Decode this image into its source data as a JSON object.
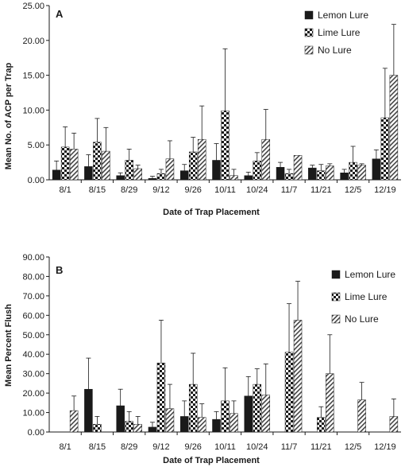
{
  "chart_data": [
    {
      "type": "bar",
      "panel_label": "A",
      "title": "",
      "xlabel": "Date of Trap Placement",
      "ylabel": "Mean No. of ACP per Trap",
      "ylim": [
        0,
        25
      ],
      "yticks": [
        "0.00",
        "5.00",
        "10.00",
        "15.00",
        "20.00",
        "25.00"
      ],
      "y_tick_values": [
        0,
        5,
        10,
        15,
        20,
        25
      ],
      "grid": false,
      "legend_position": "top-right",
      "error_bars": true,
      "categories": [
        "8/1",
        "8/15",
        "8/29",
        "9/12",
        "9/26",
        "10/11",
        "10/24",
        "11/7",
        "11/21",
        "12/5",
        "12/19"
      ],
      "series": [
        {
          "name": "Lemon Lure",
          "pattern": "solid",
          "values": [
            1.4,
            1.9,
            0.6,
            0.2,
            1.3,
            2.8,
            0.6,
            1.8,
            1.7,
            1.0,
            3.0
          ],
          "errors": [
            1.3,
            1.7,
            0.4,
            0.3,
            0.9,
            2.4,
            0.5,
            0.7,
            0.4,
            0.5,
            1.3
          ]
        },
        {
          "name": "Lime Lure",
          "pattern": "checker",
          "values": [
            4.7,
            5.4,
            2.8,
            0.9,
            4.0,
            9.9,
            2.7,
            0.9,
            1.3,
            2.5,
            8.9
          ],
          "errors": [
            2.9,
            3.4,
            1.6,
            0.6,
            2.1,
            8.9,
            1.2,
            0.6,
            0.9,
            2.3,
            7.1
          ]
        },
        {
          "name": "No Lure",
          "pattern": "hatch",
          "values": [
            4.4,
            4.1,
            1.6,
            3.0,
            5.8,
            0.6,
            5.8,
            3.5,
            2.0,
            2.1,
            15.0
          ],
          "errors": [
            2.3,
            3.4,
            0.5,
            2.6,
            4.8,
            0.9,
            4.3,
            0.0,
            0.3,
            0.2,
            7.3
          ]
        }
      ]
    },
    {
      "type": "bar",
      "panel_label": "B",
      "title": "",
      "xlabel": "Date of Trap Placement",
      "ylabel": "Mean Percent Flush",
      "ylim": [
        0,
        90
      ],
      "yticks": [
        "0.00",
        "10.00",
        "20.00",
        "30.00",
        "40.00",
        "50.00",
        "60.00",
        "70.00",
        "80.00",
        "90.00"
      ],
      "y_tick_values": [
        0,
        10,
        20,
        30,
        40,
        50,
        60,
        70,
        80,
        90
      ],
      "grid": false,
      "legend_position": "top-right",
      "error_bars": true,
      "categories": [
        "8/1",
        "8/15",
        "8/29",
        "9/12",
        "9/26",
        "10/11",
        "10/24",
        "11/7",
        "11/21",
        "12/5",
        "12/19"
      ],
      "series": [
        {
          "name": "Lemon Lure",
          "pattern": "solid",
          "values": [
            0,
            22,
            13.5,
            2.5,
            8,
            6.5,
            18.5,
            0,
            0,
            0,
            0
          ],
          "errors": [
            0,
            16,
            8.5,
            2.5,
            8,
            4,
            10,
            0,
            0,
            0,
            0
          ]
        },
        {
          "name": "Lime Lure",
          "pattern": "checker",
          "values": [
            0,
            4,
            5.5,
            35.5,
            24.5,
            16,
            24.5,
            41,
            7.5,
            0,
            0
          ],
          "errors": [
            0,
            4,
            5,
            22,
            16,
            17,
            8,
            25,
            5.5,
            0,
            0
          ]
        },
        {
          "name": "No Lure",
          "pattern": "hatch",
          "values": [
            11,
            0,
            4,
            12,
            7.5,
            9.5,
            19,
            57.5,
            30,
            16.5,
            8
          ],
          "errors": [
            7.5,
            0,
            4,
            12.5,
            7,
            6.5,
            16,
            20,
            20,
            9,
            9
          ]
        }
      ]
    }
  ]
}
